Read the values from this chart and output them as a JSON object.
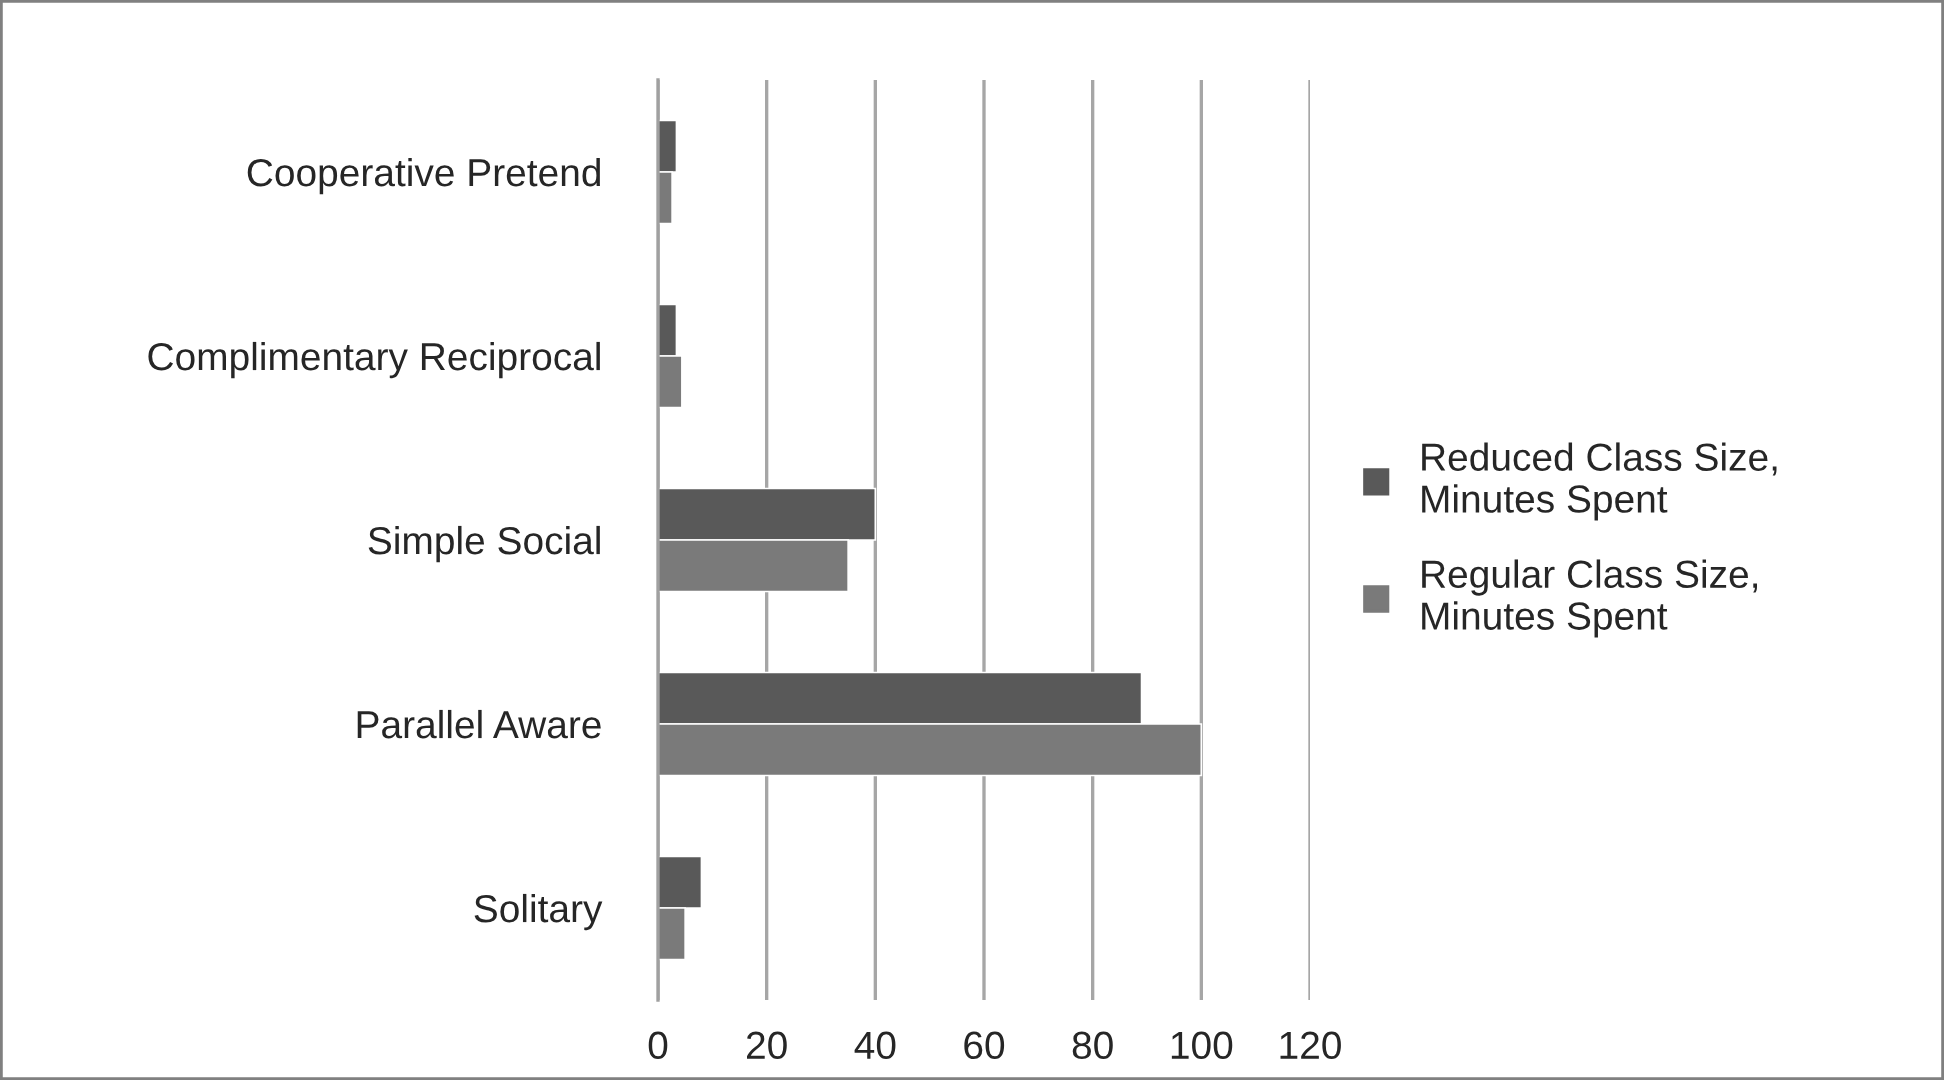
{
  "chart_data": {
    "type": "bar",
    "orientation": "horizontal",
    "categories": [
      "Cooperative Pretend",
      "Complimentary Reciprocal",
      "Simple Social",
      "Parallel Aware",
      "Solitary"
    ],
    "series": [
      {
        "name": "Reduced Class Size, Minutes Spent",
        "color": "#595959",
        "values": [
          3.4,
          3.4,
          40,
          89,
          8
        ]
      },
      {
        "name": "Regular Class Size, Minutes Spent",
        "color": "#7a7a7a",
        "values": [
          2.6,
          4.4,
          35,
          100,
          5
        ]
      }
    ],
    "xlim": [
      0,
      120
    ],
    "xticks": [
      0,
      20,
      40,
      60,
      80,
      100,
      120
    ],
    "grid": "x",
    "legend": "right"
  }
}
